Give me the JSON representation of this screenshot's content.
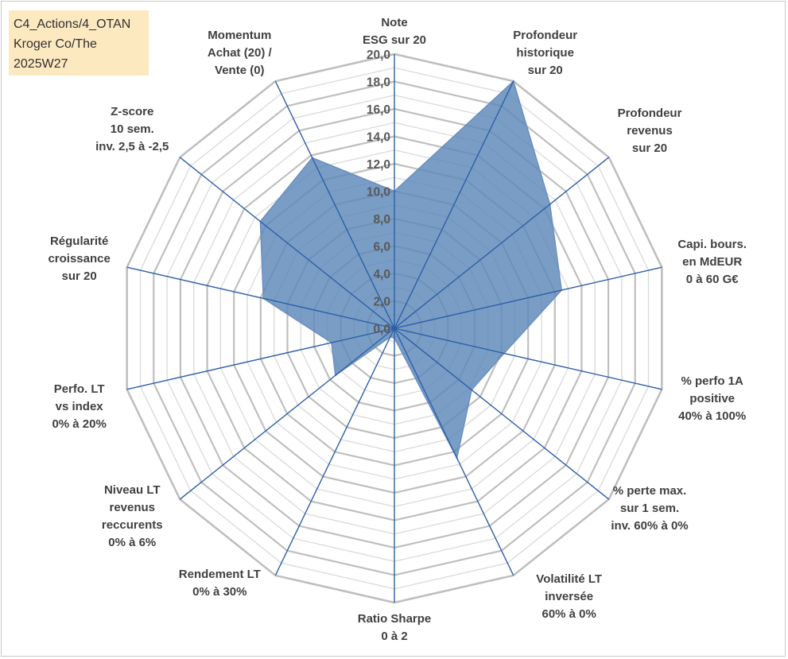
{
  "info_box": {
    "line1": "C4_Actions/4_OTAN",
    "line2": "Kroger Co/The",
    "line3": "2025W27"
  },
  "colors": {
    "fill": "#5b87b8",
    "stroke": "#6b8fbf",
    "spoke": "#2e5fa8",
    "grid_major": "#bfbfbf",
    "grid_minor": "#d9d9d9",
    "info_bg": "#fde9c0"
  },
  "chart_data": {
    "type": "radar",
    "range": [
      0,
      20
    ],
    "tick_step": 2,
    "tick_labels": [
      "0,0",
      "2,0",
      "4,0",
      "6,0",
      "8,0",
      "10,0",
      "12,0",
      "14,0",
      "16,0",
      "18,0",
      "20,0"
    ],
    "axes": [
      {
        "lines": [
          "Note",
          "ESG sur 20"
        ]
      },
      {
        "lines": [
          "Profondeur",
          "historique",
          "sur 20"
        ]
      },
      {
        "lines": [
          "Profondeur",
          "revenus",
          "sur 20"
        ]
      },
      {
        "lines": [
          "Capi. bours.",
          "en MdEUR",
          "0 à 60 G€"
        ]
      },
      {
        "lines": [
          "% perfo 1A",
          "positive",
          "40% à 100%"
        ]
      },
      {
        "lines": [
          "% perte max.",
          "sur 1 sem.",
          "inv. 60% à 0%"
        ]
      },
      {
        "lines": [
          "Volatilité LT",
          "inversée",
          "60% à 0%"
        ]
      },
      {
        "lines": [
          "Ratio Sharpe",
          "0 à 2"
        ]
      },
      {
        "lines": [
          "Rendement LT",
          "0% à 30%"
        ]
      },
      {
        "lines": [
          "Niveau LT",
          "revenus",
          "reccurents",
          "0% à 6%"
        ]
      },
      {
        "lines": [
          "Perfo. LT",
          "vs index",
          "0% à 20%"
        ]
      },
      {
        "lines": [
          "Régularité",
          "croissance",
          "sur 20"
        ]
      },
      {
        "lines": [
          "Z-score",
          "10 sem.",
          "inv. 2,5 à -2,5"
        ]
      },
      {
        "lines": [
          "Momentum",
          "Achat (20) /",
          "Vente (0)"
        ]
      }
    ],
    "values": [
      10.0,
      20.0,
      14.5,
      12.5,
      8.2,
      7.2,
      10.5,
      0.7,
      0.7,
      5.5,
      4.7,
      9.8,
      12.5,
      13.8
    ],
    "grid": true,
    "legend": "none"
  }
}
